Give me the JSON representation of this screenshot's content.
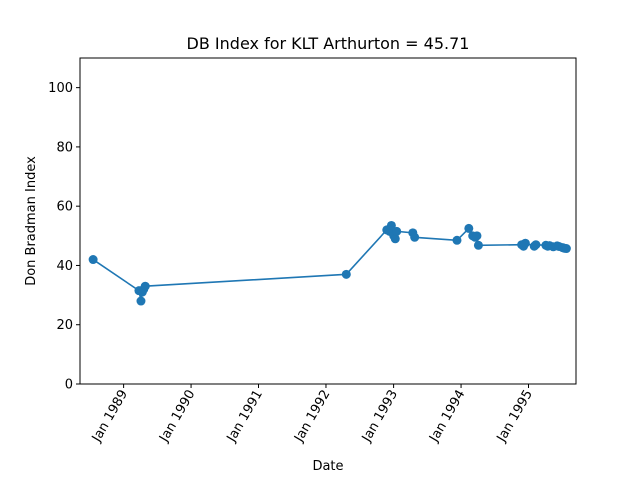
{
  "chart_data": {
    "type": "line",
    "title": "DB Index for KLT Arthurton = 45.71",
    "xlabel": "Date",
    "ylabel": "Don Bradman Index",
    "ylim": [
      0,
      110
    ],
    "yticks": [
      0,
      20,
      40,
      60,
      80,
      100
    ],
    "xlim": [
      "1988-05-10",
      "1995-09-15"
    ],
    "xticks": [
      {
        "date": "1989-01-01",
        "label": "Jan 1989"
      },
      {
        "date": "1990-01-01",
        "label": "Jan 1990"
      },
      {
        "date": "1991-01-01",
        "label": "Jan 1991"
      },
      {
        "date": "1992-01-01",
        "label": "Jan 1992"
      },
      {
        "date": "1993-01-01",
        "label": "Jan 1993"
      },
      {
        "date": "1994-01-01",
        "label": "Jan 1994"
      },
      {
        "date": "1995-01-01",
        "label": "Jan 1995"
      }
    ],
    "grid": false,
    "color": "#1f77b4",
    "series": [
      {
        "x": [
          "1988-07-20",
          "1989-03-25",
          "1989-04-05",
          "1989-04-12",
          "1989-04-20",
          "1989-04-28",
          "1992-04-20",
          "1992-11-25",
          "1992-12-10",
          "1992-12-20",
          "1993-01-02",
          "1993-01-10",
          "1993-01-18",
          "1993-04-15",
          "1993-04-25",
          "1993-12-10",
          "1994-02-12",
          "1994-03-05",
          "1994-03-18",
          "1994-03-28",
          "1994-04-05",
          "1994-11-25",
          "1994-12-05",
          "1994-12-15",
          "1995-02-01",
          "1995-02-10",
          "1995-04-05",
          "1995-04-15",
          "1995-04-25",
          "1995-05-15",
          "1995-06-05",
          "1995-06-15",
          "1995-07-05",
          "1995-07-15",
          "1995-07-25"
        ],
        "values": [
          42.0,
          31.5,
          28.0,
          31.0,
          32.0,
          33.0,
          37.0,
          52.0,
          51.5,
          53.5,
          50.0,
          49.0,
          51.5,
          51.0,
          49.5,
          48.5,
          52.5,
          50.0,
          49.5,
          50.0,
          46.8,
          47.0,
          46.5,
          47.5,
          46.5,
          47.0,
          46.8,
          46.5,
          46.7,
          46.3,
          46.6,
          46.4,
          46.0,
          45.8,
          45.71
        ]
      }
    ]
  }
}
